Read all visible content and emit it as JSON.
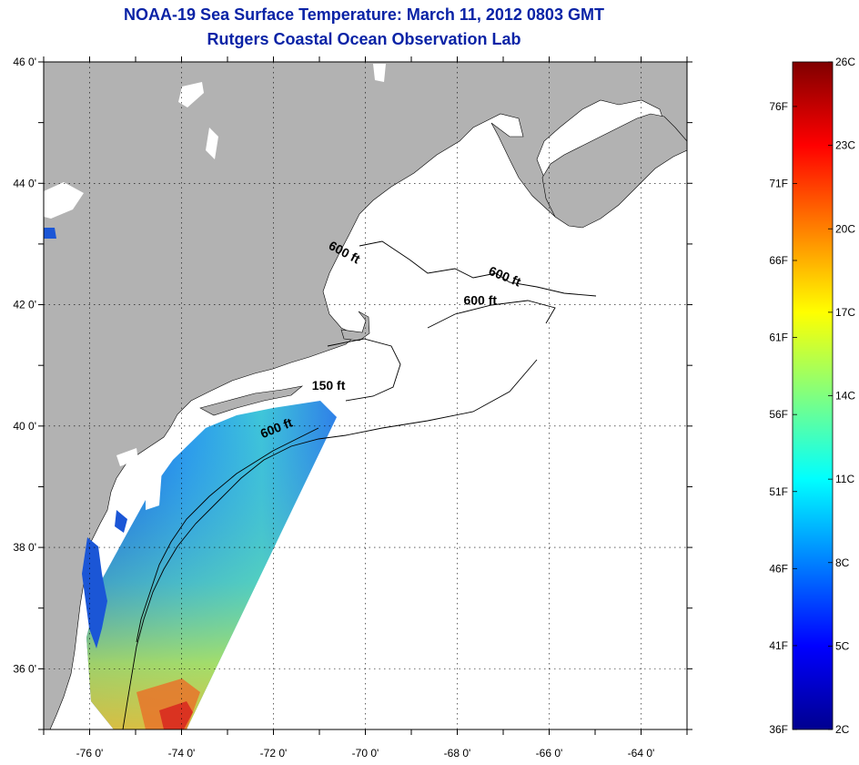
{
  "title": "NOAA-19 Sea Surface Temperature:  March 11, 2012 0803 GMT",
  "subtitle": "Rutgers Coastal Ocean Observation Lab",
  "map": {
    "lon_range": [
      -77,
      -63
    ],
    "lat_range": [
      35,
      46
    ],
    "lat_ticks": [
      {
        "value": 46,
        "label": "46 0'"
      },
      {
        "value": 44,
        "label": "44 0'"
      },
      {
        "value": 42,
        "label": "42 0'"
      },
      {
        "value": 40,
        "label": "40 0'"
      },
      {
        "value": 38,
        "label": "38 0'"
      },
      {
        "value": 36,
        "label": "36 0'"
      }
    ],
    "lon_ticks": [
      {
        "value": -76,
        "label": "-76 0'"
      },
      {
        "value": -74,
        "label": "-74 0'"
      },
      {
        "value": -72,
        "label": "-72 0'"
      },
      {
        "value": -70,
        "label": "-70 0'"
      },
      {
        "value": -68,
        "label": "-68 0'"
      },
      {
        "value": -66,
        "label": "-66 0'"
      },
      {
        "value": -64,
        "label": "-64 0'"
      }
    ],
    "grid": "dotted",
    "land_color": "#b2b2b2",
    "ocean_no_data_color": "#ffffff",
    "contour_labels": [
      {
        "text": "600 ft",
        "lon": -70.5,
        "lat": 42.8,
        "angle": 28
      },
      {
        "text": "600 ft",
        "lon": -67.0,
        "lat": 42.4,
        "angle": 22
      },
      {
        "text": "600 ft",
        "lon": -67.5,
        "lat": 42.0,
        "angle": 0
      },
      {
        "text": "150 ft",
        "lon": -70.8,
        "lat": 40.6,
        "angle": 0
      },
      {
        "text": "600 ft",
        "lon": -71.9,
        "lat": 39.9,
        "angle": -22
      }
    ]
  },
  "colorbar": {
    "left_labels": [
      {
        "label": "76F",
        "pos": 0.9333
      },
      {
        "label": "71F",
        "pos": 0.8179
      },
      {
        "label": "66F",
        "pos": 0.7026
      },
      {
        "label": "61F",
        "pos": 0.5872
      },
      {
        "label": "56F",
        "pos": 0.4718
      },
      {
        "label": "51F",
        "pos": 0.3564
      },
      {
        "label": "46F",
        "pos": 0.241
      },
      {
        "label": "41F",
        "pos": 0.1256
      },
      {
        "label": "36F",
        "pos": 0.0
      }
    ],
    "right_labels": [
      {
        "label": "26C",
        "pos": 1.0
      },
      {
        "label": "23C",
        "pos": 0.875
      },
      {
        "label": "20C",
        "pos": 0.75
      },
      {
        "label": "17C",
        "pos": 0.625
      },
      {
        "label": "14C",
        "pos": 0.5
      },
      {
        "label": "11C",
        "pos": 0.375
      },
      {
        "label": "8C",
        "pos": 0.25
      },
      {
        "label": "5C",
        "pos": 0.125
      },
      {
        "label": "2C",
        "pos": 0.0
      }
    ],
    "colors": [
      "#00008f",
      "#0000ff",
      "#0080ff",
      "#00ffff",
      "#80ff80",
      "#ffff00",
      "#ff8000",
      "#ff0000",
      "#800000"
    ]
  }
}
